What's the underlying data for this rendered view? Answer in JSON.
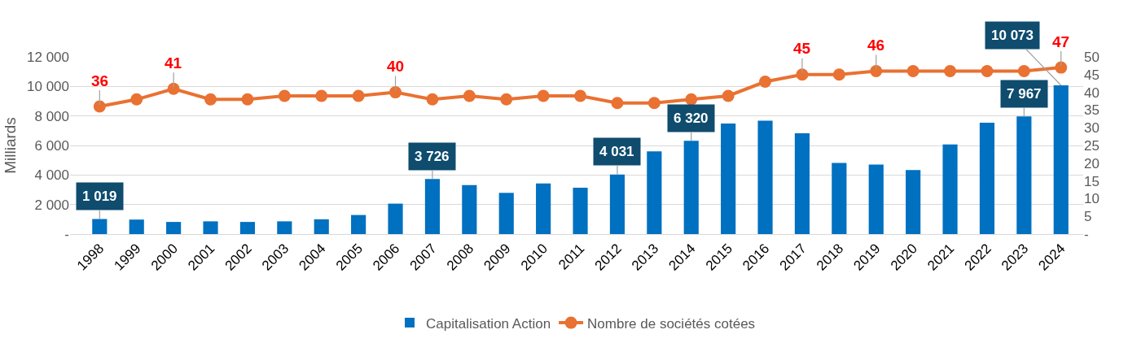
{
  "chart_data": {
    "type": "bar",
    "categories": [
      "1998",
      "1999",
      "2000",
      "2001",
      "2002",
      "2003",
      "2004",
      "2005",
      "2006",
      "2007",
      "2008",
      "2009",
      "2010",
      "2011",
      "2012",
      "2013",
      "2014",
      "2015",
      "2016",
      "2017",
      "2018",
      "2019",
      "2020",
      "2021",
      "2022",
      "2023",
      "2024"
    ],
    "series": [
      {
        "name": "Capitalisation Action",
        "color": "#0070c0",
        "values": [
          1019,
          980,
          820,
          860,
          820,
          860,
          1000,
          1290,
          2060,
          3726,
          3320,
          2790,
          3420,
          3140,
          4031,
          5600,
          6320,
          7480,
          7680,
          6820,
          4810,
          4710,
          4340,
          6070,
          7540,
          7967,
          10073
        ],
        "value_labels": [
          "1 019",
          null,
          null,
          null,
          null,
          null,
          null,
          null,
          null,
          "3 726",
          null,
          null,
          null,
          null,
          "4 031",
          null,
          "6 320",
          null,
          null,
          null,
          null,
          null,
          null,
          null,
          null,
          "7 967",
          "10 073"
        ]
      },
      {
        "name": "Nombre de sociétés cotées",
        "type": "line",
        "axis": "y2",
        "color": "#e97132",
        "values": [
          36,
          38,
          41,
          38,
          38,
          39,
          39,
          39,
          40,
          38,
          39,
          38,
          39,
          39,
          37,
          37,
          38,
          39,
          43,
          45,
          45,
          46,
          46,
          46,
          46,
          46,
          47
        ],
        "value_labels": [
          "36",
          null,
          "41",
          null,
          null,
          null,
          null,
          null,
          "40",
          null,
          null,
          null,
          null,
          null,
          null,
          null,
          null,
          null,
          null,
          "45",
          null,
          "46",
          null,
          null,
          null,
          null,
          "47"
        ]
      }
    ],
    "ylabel": "Milliards",
    "ylim": [
      0,
      12000
    ],
    "yticks": [
      {
        "value": 0,
        "label": "-"
      },
      {
        "value": 2000,
        "label": "2 000"
      },
      {
        "value": 4000,
        "label": "4 000"
      },
      {
        "value": 6000,
        "label": "6 000"
      },
      {
        "value": 8000,
        "label": "8 000"
      },
      {
        "value": 10000,
        "label": "10 000"
      },
      {
        "value": 12000,
        "label": "12 000"
      }
    ],
    "y2lim": [
      0,
      50
    ],
    "y2ticks": [
      {
        "value": 0,
        "label": "-"
      },
      5,
      10,
      15,
      20,
      25,
      30,
      35,
      40,
      45,
      50
    ],
    "grid": "y",
    "marker": "circle",
    "line_style": "solid",
    "legend": "bottom"
  }
}
